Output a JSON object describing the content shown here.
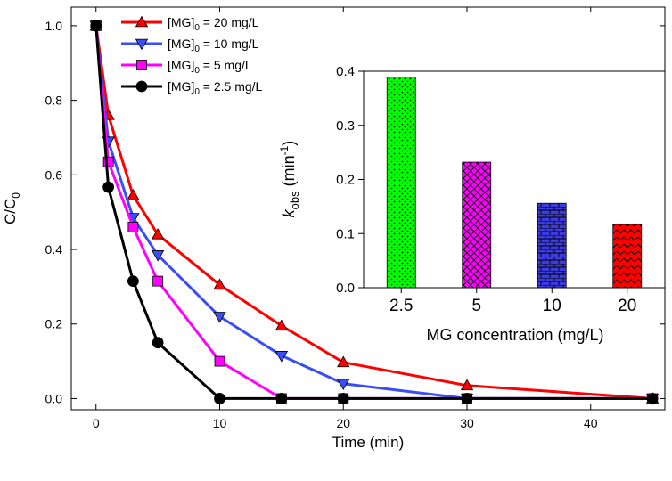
{
  "chart_data": [
    {
      "type": "line",
      "title": "",
      "xlabel": "Time (min)",
      "ylabel": "C/C",
      "ylabel_sub": "0",
      "xlim": [
        -2,
        46
      ],
      "ylim": [
        -0.03,
        1.05
      ],
      "xticks": [
        0,
        10,
        20,
        30,
        40
      ],
      "xtick_labels": [
        "0",
        "10",
        "20",
        "30",
        "40"
      ],
      "yticks": [
        0.0,
        0.2,
        0.4,
        0.6,
        0.8,
        1.0
      ],
      "ytick_labels": [
        "0.0",
        "0.2",
        "0.4",
        "0.6",
        "0.8",
        "1.0"
      ],
      "legend_position": "top-left",
      "series": [
        {
          "name": "[MG]0 = 20 mg/L",
          "legend_prefix": "[MG]",
          "legend_sub": "0",
          "legend_suffix": " = 20 mg/L",
          "color": "#ff0000",
          "marker": "triangle-up",
          "x": [
            0,
            1,
            3,
            5,
            10,
            15,
            20,
            30,
            45
          ],
          "y": [
            1.0,
            0.76,
            0.545,
            0.44,
            0.305,
            0.195,
            0.097,
            0.035,
            0.0
          ]
        },
        {
          "name": "[MG]0 = 10 mg/L",
          "legend_prefix": "[MG]",
          "legend_sub": "0",
          "legend_suffix": " = 10 mg/L",
          "color": "#3b4ef5",
          "marker": "triangle-down",
          "x": [
            0,
            1,
            3,
            5,
            10,
            15,
            20,
            30,
            45
          ],
          "y": [
            1.0,
            0.69,
            0.485,
            0.385,
            0.22,
            0.115,
            0.04,
            0.0,
            0.0
          ]
        },
        {
          "name": "[MG]0 = 5 mg/L",
          "legend_prefix": "[MG]",
          "legend_sub": "0",
          "legend_suffix": " = 5 mg/L",
          "color": "#ff00ff",
          "marker": "square",
          "x": [
            0,
            1,
            3,
            5,
            10,
            15,
            20,
            30,
            45
          ],
          "y": [
            1.0,
            0.635,
            0.46,
            0.315,
            0.1,
            0.0,
            0.0,
            0.0,
            0.0
          ]
        },
        {
          "name": "[MG]0 = 2.5 mg/L",
          "legend_prefix": "[MG]",
          "legend_sub": "0",
          "legend_suffix": " = 2.5 mg/L",
          "color": "#000000",
          "marker": "circle",
          "x": [
            0,
            1,
            3,
            5,
            10,
            15,
            20,
            30,
            45
          ],
          "y": [
            1.0,
            0.567,
            0.315,
            0.15,
            0.0,
            0.0,
            0.0,
            0.0,
            0.0
          ]
        }
      ]
    },
    {
      "type": "bar",
      "title": "",
      "xlabel": "MG concentration (mg/L)",
      "ylabel_main": "k",
      "ylabel_sub": "obs",
      "ylabel_unit": " (min",
      "ylabel_sup": "-1",
      "ylabel_close": ")",
      "ylim": [
        0,
        0.4
      ],
      "yticks": [
        0.0,
        0.1,
        0.2,
        0.3,
        0.4
      ],
      "ytick_labels": [
        "0.0",
        "0.1",
        "0.2",
        "0.3",
        "0.4"
      ],
      "categories": [
        "2.5",
        "5",
        "10",
        "20"
      ],
      "values": [
        0.389,
        0.232,
        0.156,
        0.117
      ],
      "colors": [
        "#00ff00",
        "#ff00ff",
        "#3b3be0",
        "#ff0000"
      ],
      "patterns": [
        "dots",
        "crosshatch",
        "brick",
        "zigzag"
      ]
    }
  ]
}
